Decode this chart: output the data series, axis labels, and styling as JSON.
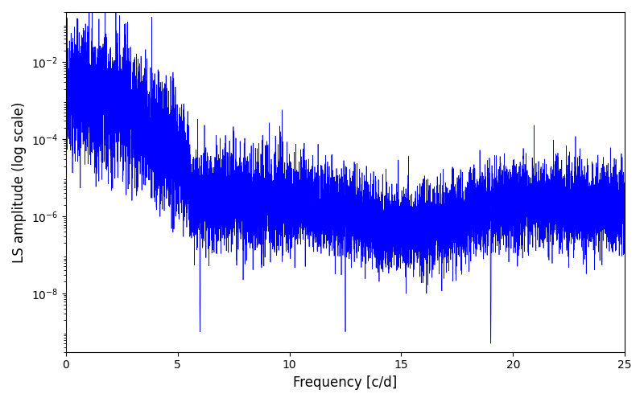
{
  "xlabel": "Frequency [c/d]",
  "ylabel": "LS amplitude (log scale)",
  "xlim": [
    0,
    25
  ],
  "ylim": [
    3e-10,
    0.2
  ],
  "yticks": [
    1e-08,
    1e-06,
    0.0001,
    0.01
  ],
  "xticks": [
    0,
    5,
    10,
    15,
    20,
    25
  ],
  "line_color": "#0000ff",
  "line_width": 0.5,
  "background_color": "#ffffff",
  "figsize": [
    8.0,
    5.0
  ],
  "dpi": 100,
  "seed": 12345,
  "n_points": 12000,
  "freq_max": 25.0
}
